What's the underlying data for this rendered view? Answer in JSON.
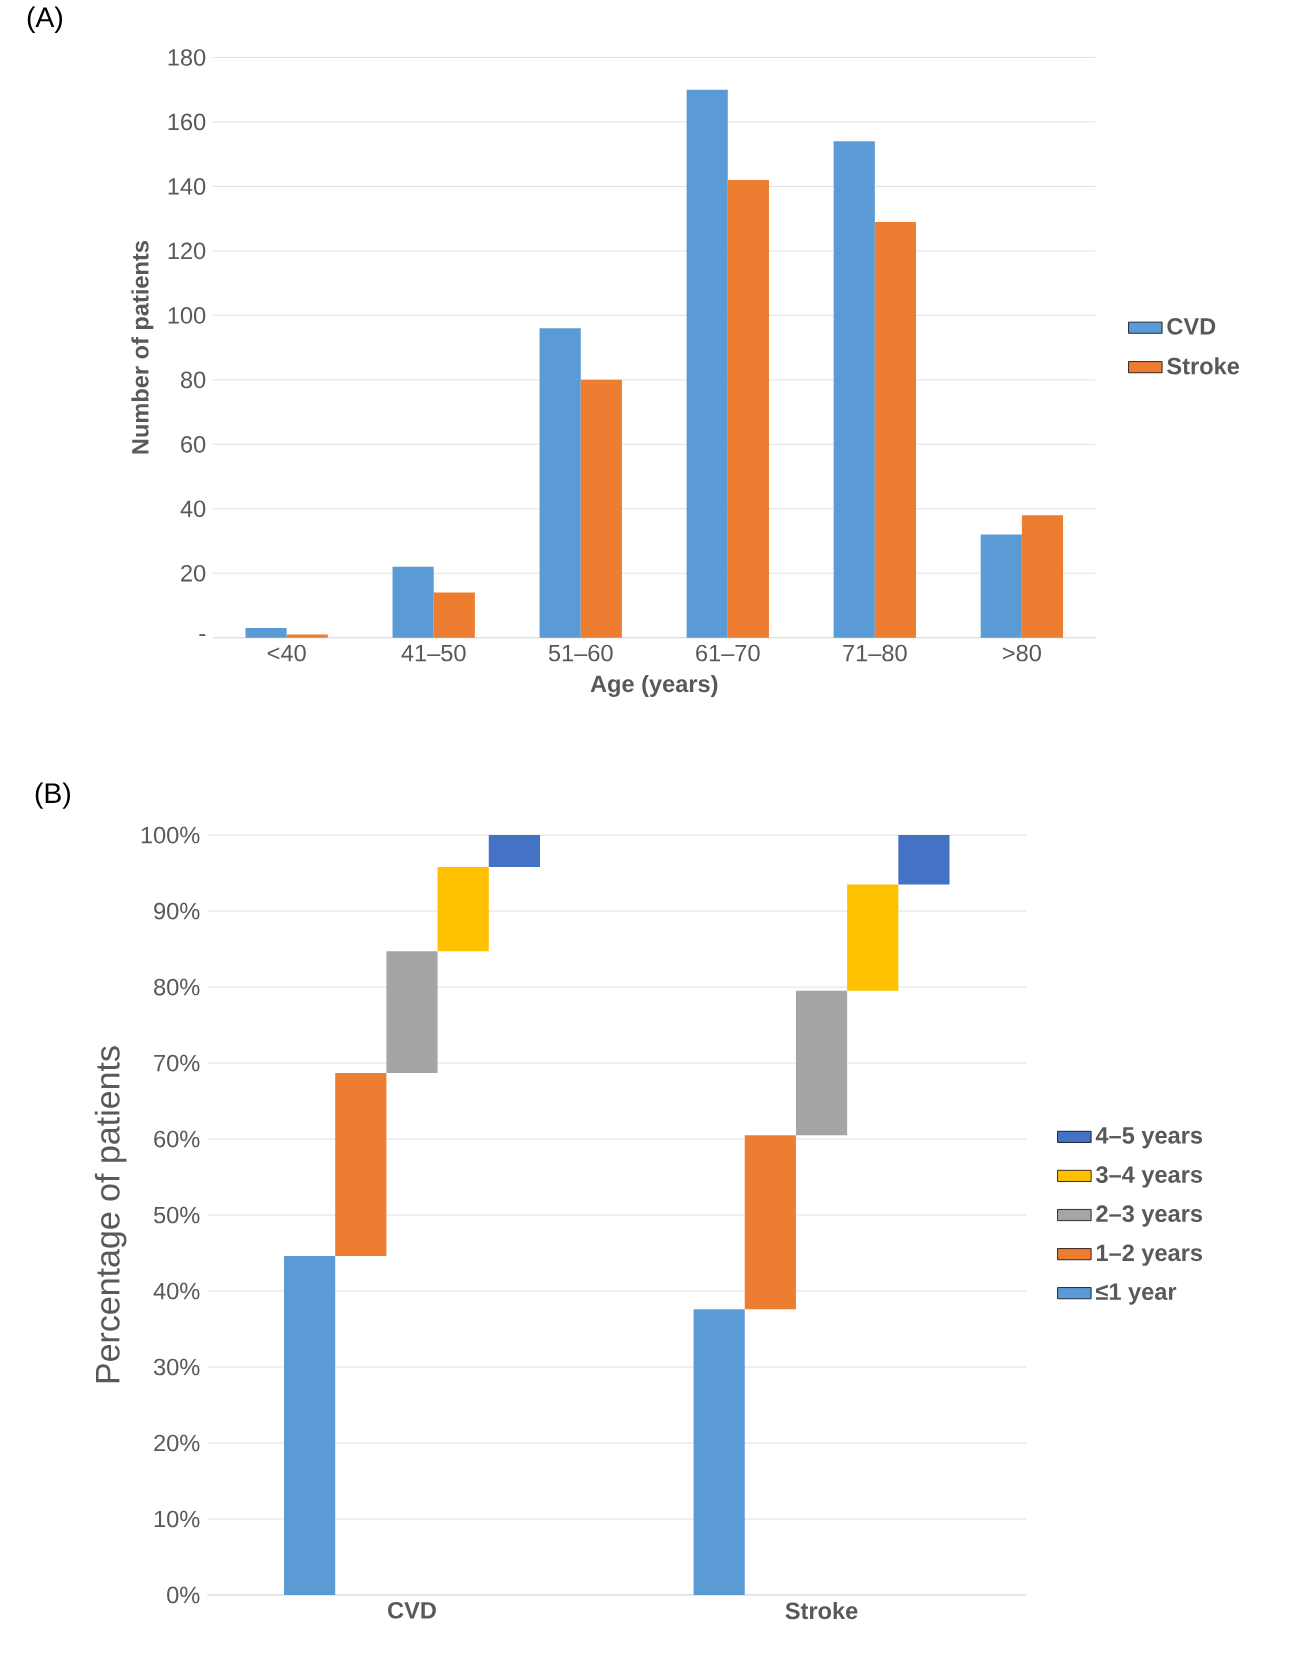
{
  "chart_data": [
    {
      "type": "bar",
      "title": "(A)",
      "xlabel": "Age (years)",
      "ylabel": "Number of patients",
      "categories": [
        "<40",
        "41–50",
        "51–60",
        "61–70",
        "71–80",
        ">80"
      ],
      "series": [
        {
          "name": "CVD",
          "color": "#5b9bd5",
          "values": [
            3,
            22,
            96,
            170,
            154,
            32
          ]
        },
        {
          "name": "Stroke",
          "color": "#ed7d31",
          "values": [
            1,
            14,
            80,
            142,
            129,
            38
          ]
        }
      ],
      "ylim": [
        0,
        180
      ],
      "yticks": [
        {
          "value": 0,
          "label": "-"
        },
        20,
        40,
        60,
        80,
        100,
        120,
        140,
        160,
        180
      ],
      "grid": "y",
      "legend": "right"
    },
    {
      "type": "bar",
      "title": "(B)",
      "ylabel": "Percentage of patients",
      "categories": [
        "CVD",
        "Stroke"
      ],
      "stacked": true,
      "series": [
        {
          "name": "≤1 year",
          "color": "#5b9bd5",
          "values": [
            44.6,
            37.6
          ]
        },
        {
          "name": "1–2 years",
          "color": "#ed7d31",
          "values": [
            24.1,
            22.9
          ]
        },
        {
          "name": "2–3 years",
          "color": "#a5a5a5",
          "values": [
            16.0,
            19.0
          ]
        },
        {
          "name": "3–4 years",
          "color": "#ffc000",
          "values": [
            11.1,
            14.0
          ]
        },
        {
          "name": "4–5 years",
          "color": "#4472c4",
          "values": [
            4.2,
            6.5
          ]
        }
      ],
      "ylim": [
        0,
        100
      ],
      "yticks": [
        {
          "value": 0,
          "label": "0%"
        },
        {
          "value": 10,
          "label": "10%"
        },
        {
          "value": 20,
          "label": "20%"
        },
        {
          "value": 30,
          "label": "30%"
        },
        {
          "value": 40,
          "label": "40%"
        },
        {
          "value": 50,
          "label": "50%"
        },
        {
          "value": 60,
          "label": "60%"
        },
        {
          "value": 70,
          "label": "70%"
        },
        {
          "value": 80,
          "label": "80%"
        },
        {
          "value": 90,
          "label": "90%"
        },
        {
          "value": 100,
          "label": "100%"
        }
      ],
      "grid": "y",
      "legend": "right"
    }
  ]
}
